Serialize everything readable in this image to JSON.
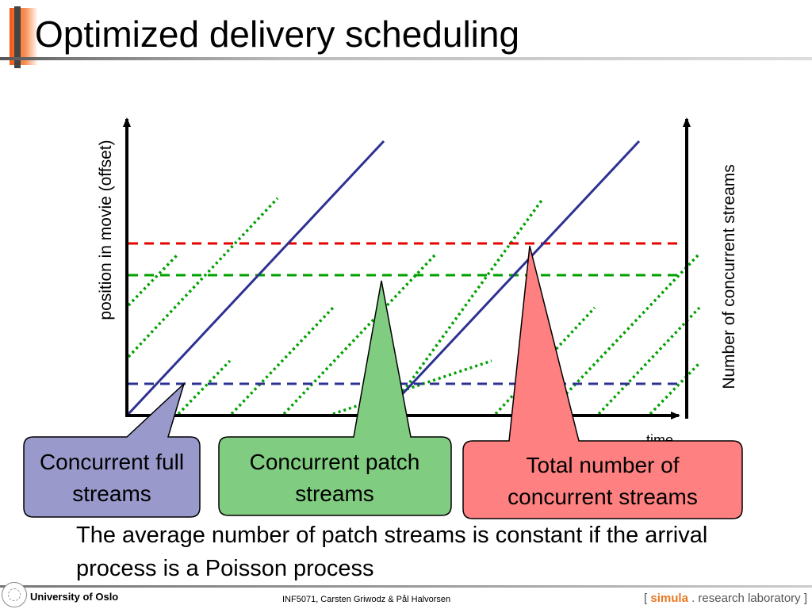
{
  "slide": {
    "title": "Optimized delivery scheduling",
    "body": "The average number of patch streams is constant if the arrival process is a Poisson process"
  },
  "diagram": {
    "y_axis_label": "position in movie (offset)",
    "x_axis_label": "time",
    "right_axis_label": "Number of concurrent streams",
    "callouts": {
      "full": "Concurrent full streams",
      "patch": "Concurrent patch streams",
      "total": "Total number of concurrent streams"
    },
    "colors": {
      "full_stream": "#2e3192",
      "patch_stream": "#00a000",
      "level_total": "#e60000",
      "level_patch": "#00a000",
      "level_full": "#2e3192",
      "callout_full": "#9999cc",
      "callout_patch": "#80cc80",
      "callout_total": "#ff8080"
    }
  },
  "footer": {
    "university": "University of Oslo",
    "course": "INF5071,  Carsten Griwodz & Pål Halvorsen",
    "lab_open": "[ ",
    "lab_simula": "simula",
    "lab_rest": " . research laboratory ]"
  }
}
